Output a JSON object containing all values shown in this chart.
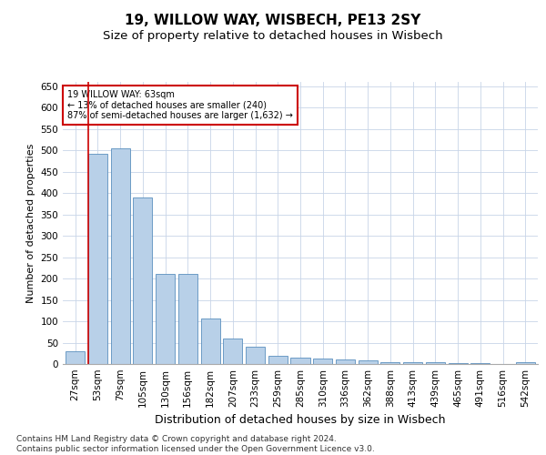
{
  "title": "19, WILLOW WAY, WISBECH, PE13 2SY",
  "subtitle": "Size of property relative to detached houses in Wisbech",
  "xlabel": "Distribution of detached houses by size in Wisbech",
  "ylabel": "Number of detached properties",
  "categories": [
    "27sqm",
    "53sqm",
    "79sqm",
    "105sqm",
    "130sqm",
    "156sqm",
    "182sqm",
    "207sqm",
    "233sqm",
    "259sqm",
    "285sqm",
    "310sqm",
    "336sqm",
    "362sqm",
    "388sqm",
    "413sqm",
    "439sqm",
    "465sqm",
    "491sqm",
    "516sqm",
    "542sqm"
  ],
  "values": [
    30,
    492,
    505,
    390,
    210,
    210,
    107,
    60,
    40,
    19,
    15,
    13,
    11,
    8,
    5,
    5,
    5,
    2,
    3,
    1,
    4
  ],
  "bar_color": "#b8d0e8",
  "bar_edge_color": "#5a8fbe",
  "highlight_bar_index": 1,
  "highlight_line_color": "#cc0000",
  "annotation_text": "19 WILLOW WAY: 63sqm\n← 13% of detached houses are smaller (240)\n87% of semi-detached houses are larger (1,632) →",
  "annotation_box_color": "#ffffff",
  "annotation_box_edge_color": "#cc0000",
  "ylim": [
    0,
    660
  ],
  "yticks": [
    0,
    50,
    100,
    150,
    200,
    250,
    300,
    350,
    400,
    450,
    500,
    550,
    600,
    650
  ],
  "background_color": "#ffffff",
  "grid_color": "#c8d4e8",
  "title_fontsize": 11,
  "subtitle_fontsize": 9.5,
  "xlabel_fontsize": 9,
  "ylabel_fontsize": 8,
  "tick_fontsize": 7.5,
  "footer_text": "Contains HM Land Registry data © Crown copyright and database right 2024.\nContains public sector information licensed under the Open Government Licence v3.0.",
  "footer_fontsize": 6.5
}
